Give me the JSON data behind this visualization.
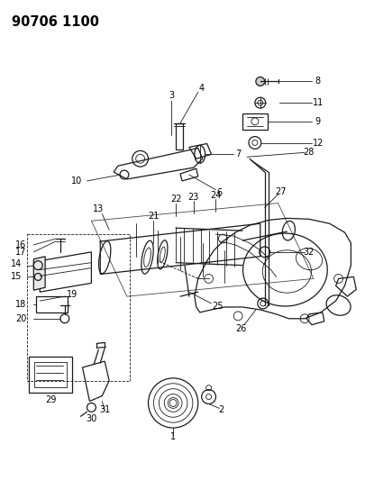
{
  "title": "90706 1100",
  "bg_color": "#ffffff",
  "line_color": "#1a1a1a",
  "fig_width": 4.05,
  "fig_height": 5.33,
  "dpi": 100,
  "label_fs": 7.0,
  "title_fs": 10.5,
  "lw_thin": 0.6,
  "lw_med": 0.9,
  "lw_thick": 1.4
}
